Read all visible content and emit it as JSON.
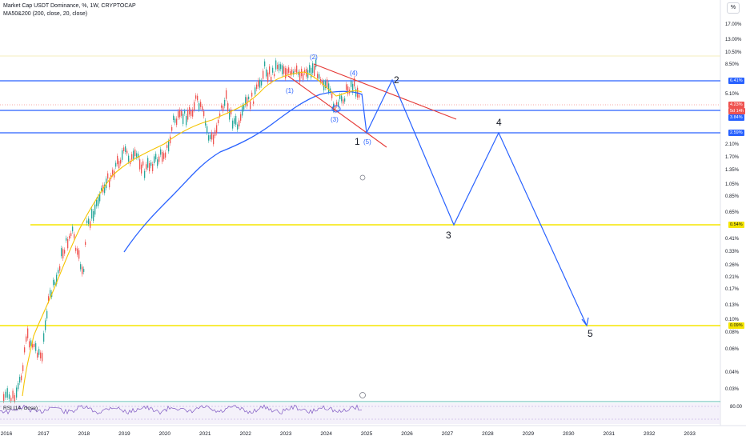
{
  "header": {
    "title": "Market Cap USDT Dominance, %, 1W, CRYPTOCAP",
    "indicator": "MA50&200 (200, close, 20, close)"
  },
  "scale_button": "%",
  "price_axis": {
    "ticks": [
      {
        "label": "17.00%",
        "v": 17
      },
      {
        "label": "13.00%",
        "v": 13
      },
      {
        "label": "10.50%",
        "v": 10.5
      },
      {
        "label": "8.50%",
        "v": 8.5
      },
      {
        "label": "5.10%",
        "v": 5.1
      },
      {
        "label": "2.10%",
        "v": 2.1
      },
      {
        "label": "1.70%",
        "v": 1.7
      },
      {
        "label": "1.35%",
        "v": 1.35
      },
      {
        "label": "1.05%",
        "v": 1.05
      },
      {
        "label": "0.85%",
        "v": 0.85
      },
      {
        "label": "0.65%",
        "v": 0.65
      },
      {
        "label": "0.41%",
        "v": 0.41
      },
      {
        "label": "0.33%",
        "v": 0.33
      },
      {
        "label": "0.26%",
        "v": 0.26
      },
      {
        "label": "0.21%",
        "v": 0.21
      },
      {
        "label": "0.17%",
        "v": 0.17
      },
      {
        "label": "0.13%",
        "v": 0.13
      },
      {
        "label": "0.10%",
        "v": 0.1
      },
      {
        "label": "0.08%",
        "v": 0.08
      },
      {
        "label": "0.06%",
        "v": 0.06
      },
      {
        "label": "0.04%",
        "v": 0.04
      },
      {
        "label": "0.03%",
        "v": 0.03
      }
    ],
    "tags": {
      "level_top": "6.41%",
      "current": "4.23%",
      "countdown": "5d 14h",
      "level_mid": "3.84%",
      "level_low": "2.59%",
      "yellow_top": "0.54%",
      "yellow_bottom": "0.09%"
    }
  },
  "time_axis": {
    "years": [
      {
        "label": "2016",
        "y": 2016
      },
      {
        "label": "2017",
        "y": 2017
      },
      {
        "label": "2018",
        "y": 2018
      },
      {
        "label": "2019",
        "y": 2019
      },
      {
        "label": "2020",
        "y": 2020
      },
      {
        "label": "2021",
        "y": 2021
      },
      {
        "label": "2022",
        "y": 2022
      },
      {
        "label": "2023",
        "y": 2023
      },
      {
        "label": "2024",
        "y": 2024
      },
      {
        "label": "2025",
        "y": 2025
      },
      {
        "label": "2026",
        "y": 2026
      },
      {
        "label": "2027",
        "y": 2027
      },
      {
        "label": "2028",
        "y": 2028
      },
      {
        "label": "2029",
        "y": 2029
      },
      {
        "label": "2030",
        "y": 2030
      },
      {
        "label": "2031",
        "y": 2031
      },
      {
        "label": "2032",
        "y": 2032
      },
      {
        "label": "2033",
        "y": 2033
      }
    ]
  },
  "annotations": {
    "minor": [
      "(1)",
      "(2)",
      "(3)",
      "(4)",
      "(5)"
    ],
    "major": [
      "1",
      "2",
      "3",
      "4",
      "5"
    ]
  },
  "rsi": {
    "label": "RSI (14, close)",
    "level": "80.00"
  },
  "colors": {
    "blue": "#2962ff",
    "red": "#e53935",
    "yellow": "#f5e500",
    "up": "#26a69a",
    "down": "#ef5350"
  }
}
